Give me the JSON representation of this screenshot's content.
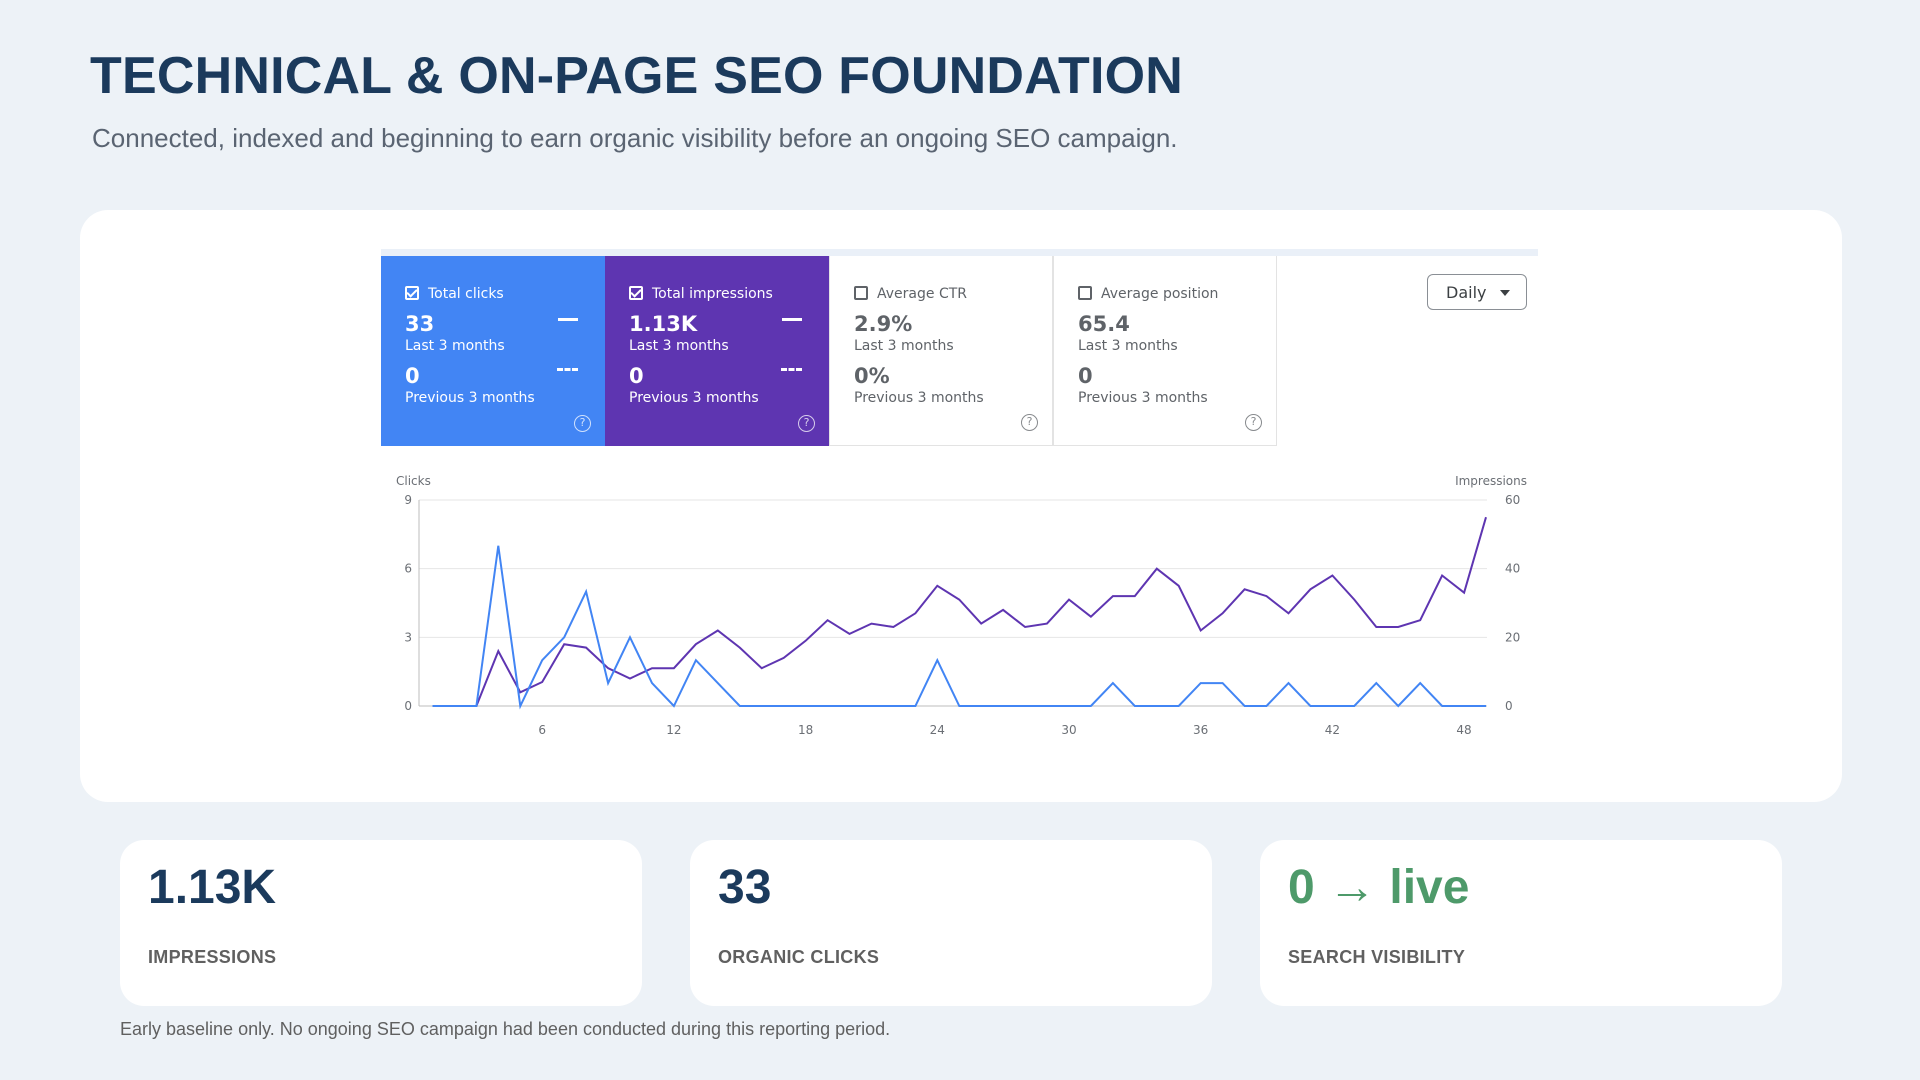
{
  "page": {
    "title": "TECHNICAL & ON-PAGE SEO FOUNDATION",
    "subtitle": "Connected, indexed and beginning to earn organic visibility before an ongoing SEO campaign.",
    "footnote": "Early baseline only. No ongoing SEO campaign had been conducted during this reporting period."
  },
  "metrics": [
    {
      "label": "Total clicks",
      "checked": true,
      "value": "33",
      "period": "Last 3 months",
      "prev_value": "0",
      "prev_period": "Previous 3 months",
      "help_icon": "help-icon"
    },
    {
      "label": "Total impressions",
      "checked": true,
      "value": "1.13K",
      "period": "Last 3 months",
      "prev_value": "0",
      "prev_period": "Previous 3 months",
      "help_icon": "help-icon"
    },
    {
      "label": "Average CTR",
      "checked": false,
      "value": "2.9%",
      "period": "Last 3 months",
      "prev_value": "0%",
      "prev_period": "Previous 3 months",
      "help_icon": "help-icon"
    },
    {
      "label": "Average position",
      "checked": false,
      "value": "65.4",
      "period": "Last 3 months",
      "prev_value": "0",
      "prev_period": "Previous 3 months",
      "help_icon": "help-icon"
    }
  ],
  "daily_select": {
    "label": "Daily",
    "icon": "caret-down-icon"
  },
  "colors": {
    "clicks": "#4285f4",
    "impressions": "#5e35b1",
    "title": "#1b3a5c",
    "accent_green": "#4e9a6a"
  },
  "chart_data": {
    "type": "line",
    "left_axis_label": "Clicks",
    "right_axis_label": "Impressions",
    "left_ylim": [
      0,
      9
    ],
    "left_ticks": [
      0,
      3,
      6,
      9
    ],
    "right_ylim": [
      0,
      60
    ],
    "right_ticks": [
      0,
      20,
      40,
      60
    ],
    "xlim": [
      1,
      49
    ],
    "x_ticks": [
      6,
      12,
      18,
      24,
      30,
      36,
      42,
      48
    ],
    "grid": true,
    "series": [
      {
        "name": "Total clicks",
        "axis": "left",
        "x": [
          1,
          2,
          3,
          4,
          5,
          6,
          7,
          8,
          9,
          10,
          11,
          12,
          13,
          14,
          15,
          16,
          17,
          18,
          19,
          20,
          21,
          22,
          23,
          24,
          25,
          26,
          27,
          28,
          29,
          30,
          31,
          32,
          33,
          34,
          35,
          36,
          37,
          38,
          39,
          40,
          41,
          42,
          43,
          44,
          45,
          46,
          47,
          48,
          49
        ],
        "values": [
          0,
          0,
          0,
          7,
          0,
          2,
          3,
          5,
          1,
          3,
          1,
          0,
          2,
          1,
          0,
          0,
          0,
          0,
          0,
          0,
          0,
          0,
          0,
          2,
          0,
          0,
          0,
          0,
          0,
          0,
          0,
          1,
          0,
          0,
          0,
          1,
          1,
          0,
          0,
          1,
          0,
          0,
          0,
          1,
          0,
          1,
          0,
          0,
          0
        ]
      },
      {
        "name": "Total impressions",
        "axis": "right",
        "x": [
          1,
          2,
          3,
          4,
          5,
          6,
          7,
          8,
          9,
          10,
          11,
          12,
          13,
          14,
          15,
          16,
          17,
          18,
          19,
          20,
          21,
          22,
          23,
          24,
          25,
          26,
          27,
          28,
          29,
          30,
          31,
          32,
          33,
          34,
          35,
          36,
          37,
          38,
          39,
          40,
          41,
          42,
          43,
          44,
          45,
          46,
          47,
          48,
          49
        ],
        "values": [
          0,
          0,
          0,
          16,
          4,
          7,
          18,
          17,
          11,
          8,
          11,
          11,
          18,
          22,
          17,
          11,
          14,
          19,
          25,
          21,
          24,
          23,
          27,
          35,
          31,
          24,
          28,
          23,
          24,
          31,
          26,
          32,
          32,
          40,
          35,
          22,
          27,
          34,
          32,
          27,
          34,
          38,
          31,
          23,
          23,
          25,
          38,
          33,
          55
        ]
      }
    ]
  },
  "stats": [
    {
      "value": "1.13K",
      "label": "IMPRESSIONS"
    },
    {
      "value": "33",
      "label": "ORGANIC CLICKS"
    },
    {
      "value": "0 → live",
      "label": "SEARCH VISIBILITY"
    }
  ]
}
